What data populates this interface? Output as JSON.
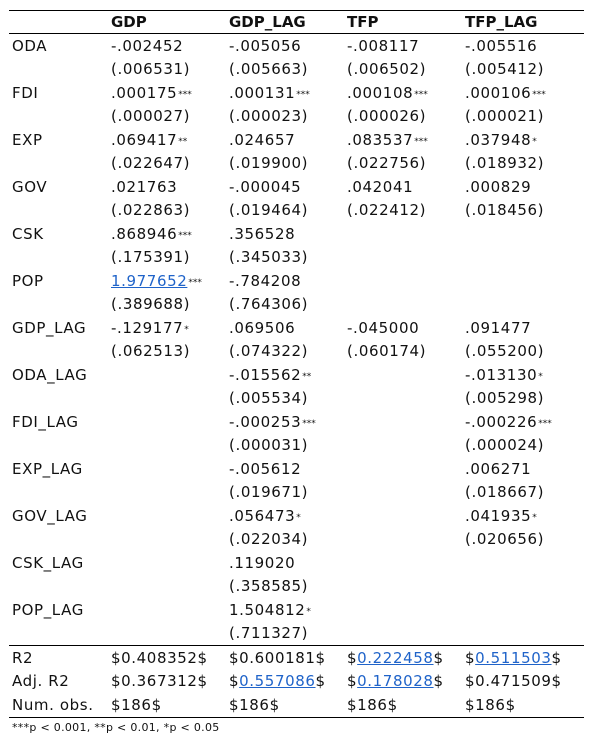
{
  "headers": [
    "",
    "GDP",
    "GDP_LAG",
    "TFP",
    "TFP_LAG"
  ],
  "rows": [
    {
      "label": "ODA",
      "coef": [
        [
          "-.002452",
          ""
        ],
        [
          "-.005056",
          ""
        ],
        [
          "-.008117",
          ""
        ],
        [
          "-.005516",
          ""
        ]
      ],
      "se": [
        "(.006531)",
        "(.005663)",
        "(.006502)",
        "(.005412)"
      ]
    },
    {
      "label": "FDI",
      "coef": [
        [
          ".000175",
          "***"
        ],
        [
          ".000131",
          "***"
        ],
        [
          ".000108",
          "***"
        ],
        [
          ".000106",
          "***"
        ]
      ],
      "se": [
        "(.000027)",
        "(.000023)",
        "(.000026)",
        "(.000021)"
      ]
    },
    {
      "label": "EXP",
      "coef": [
        [
          ".069417",
          "**"
        ],
        [
          ".024657",
          ""
        ],
        [
          ".083537",
          "***"
        ],
        [
          ".037948",
          "*"
        ]
      ],
      "se": [
        "(.022647)",
        "(.019900)",
        "(.022756)",
        "(.018932)"
      ]
    },
    {
      "label": "GOV",
      "coef": [
        [
          ".021763",
          ""
        ],
        [
          "-.000045",
          ""
        ],
        [
          ".042041",
          ""
        ],
        [
          ".000829",
          ""
        ]
      ],
      "se": [
        "(.022863)",
        "(.019464)",
        "(.022412)",
        "(.018456)"
      ]
    },
    {
      "label": "CSK",
      "coef": [
        [
          ".868946",
          "***"
        ],
        [
          ".356528",
          ""
        ],
        [
          "",
          ""
        ],
        [
          "",
          ""
        ]
      ],
      "se": [
        "(.175391)",
        "(.345033)",
        "",
        ""
      ]
    },
    {
      "label": "POP",
      "coef": [
        [
          "1.977652",
          "***"
        ],
        [
          "-.784208",
          ""
        ],
        [
          "",
          ""
        ],
        [
          "",
          ""
        ]
      ],
      "se": [
        "(.389688)",
        "(.764306)",
        "",
        ""
      ]
    },
    {
      "label": "GDP_LAG",
      "coef": [
        [
          "-.129177",
          "*"
        ],
        [
          ".069506",
          ""
        ],
        [
          "-.045000",
          ""
        ],
        [
          ".091477",
          ""
        ]
      ],
      "se": [
        "(.062513)",
        "(.074322)",
        "(.060174)",
        "(.055200)"
      ]
    },
    {
      "label": "ODA_LAG",
      "coef": [
        [
          "",
          ""
        ],
        [
          "-.015562",
          "**"
        ],
        [
          "",
          ""
        ],
        [
          "-.013130",
          "*"
        ]
      ],
      "se": [
        "",
        "(.005534)",
        "",
        "(.005298)"
      ]
    },
    {
      "label": "FDI_LAG",
      "coef": [
        [
          "",
          ""
        ],
        [
          "-.000253",
          "***"
        ],
        [
          "",
          ""
        ],
        [
          "-.000226",
          "***"
        ]
      ],
      "se": [
        "",
        "(.000031)",
        "",
        "(.000024)"
      ]
    },
    {
      "label": "EXP_LAG",
      "coef": [
        [
          "",
          ""
        ],
        [
          "-.005612",
          ""
        ],
        [
          "",
          ""
        ],
        [
          ".006271",
          ""
        ]
      ],
      "se": [
        "",
        "(.019671)",
        "",
        "(.018667)"
      ]
    },
    {
      "label": "GOV_LAG",
      "coef": [
        [
          "",
          ""
        ],
        [
          ".056473",
          "*"
        ],
        [
          "",
          ""
        ],
        [
          ".041935",
          "*"
        ]
      ],
      "se": [
        "",
        "(.022034)",
        "",
        "(.020656)"
      ]
    },
    {
      "label": "CSK_LAG",
      "coef": [
        [
          "",
          ""
        ],
        [
          ".119020",
          ""
        ],
        [
          "",
          ""
        ],
        [
          "",
          ""
        ]
      ],
      "se": [
        "",
        "(.358585)",
        "",
        ""
      ]
    },
    {
      "label": "POP_LAG",
      "coef": [
        [
          "",
          ""
        ],
        [
          "1.504812",
          "*"
        ],
        [
          "",
          ""
        ],
        [
          "",
          ""
        ]
      ],
      "se": [
        "",
        "(.711327)",
        "",
        ""
      ]
    }
  ],
  "stats": [
    {
      "label": "R2",
      "values": [
        "$0.408352$",
        "$0.600181$",
        "$0.222458$",
        "$0.511503$"
      ]
    },
    {
      "label": "Adj. R2",
      "values": [
        "$0.367312$",
        "$0.557086$",
        "$0.178028$",
        "$0.471509$"
      ]
    },
    {
      "label": "Num. obs.",
      "values": [
        "$186$",
        "$186$",
        "$186$",
        "$186$"
      ]
    }
  ],
  "footnote": "***p < 0.001, **p < 0.01, *p < 0.05",
  "colors": {
    "text": "#111111",
    "link": "#1f63c9",
    "rule": "#000000"
  }
}
